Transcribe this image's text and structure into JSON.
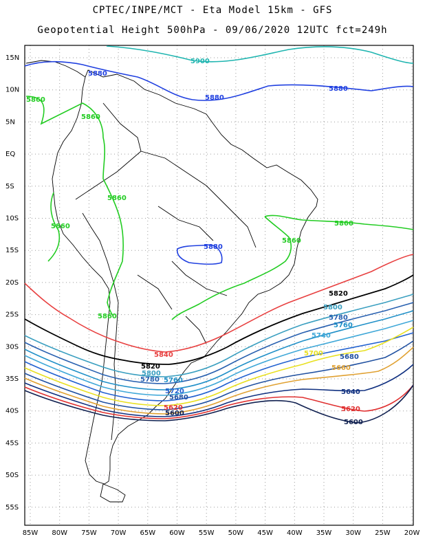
{
  "header": {
    "line1": "CPTEC/INPE/MCT -  Eta Model 15km - GFS",
    "line2": "Geopotential Height 500hPa - 09/06/2020 12UTC fct=249h"
  },
  "axes": {
    "lat_labels": [
      "15N",
      "10N",
      "5N",
      "EQ",
      "5S",
      "10S",
      "15S",
      "20S",
      "25S",
      "30S",
      "35S",
      "40S",
      "45S",
      "50S",
      "55S"
    ],
    "lon_labels": [
      "85W",
      "80W",
      "75W",
      "70W",
      "65W",
      "60W",
      "55W",
      "50W",
      "45W",
      "40W",
      "35W",
      "30W",
      "25W",
      "20W"
    ]
  },
  "contours": [
    {
      "value": "5900",
      "color": "#1fb5b0"
    },
    {
      "value": "5880",
      "color": "#2040e0"
    },
    {
      "value": "5860",
      "color": "#22cc22"
    },
    {
      "value": "5840",
      "color": "#e84040"
    },
    {
      "value": "5820",
      "color": "#000000"
    },
    {
      "value": "5800",
      "color": "#3a9fc0"
    },
    {
      "value": "5780",
      "color": "#2860b0"
    },
    {
      "value": "5760",
      "color": "#2090c8"
    },
    {
      "value": "5740",
      "color": "#40a8d8"
    },
    {
      "value": "5720",
      "color": "#2060d0"
    },
    {
      "value": "5700",
      "color": "#e8e020"
    },
    {
      "value": "5680",
      "color": "#2050a0"
    },
    {
      "value": "5660",
      "color": "#e0a030"
    },
    {
      "value": "5640",
      "color": "#103080"
    },
    {
      "value": "5620",
      "color": "#e03030"
    },
    {
      "value": "5600",
      "color": "#102050"
    }
  ],
  "labels": {
    "l5900": "5900",
    "l5880a": "5880",
    "l5880b": "5880",
    "l5880c": "5880",
    "l5880d": "5880",
    "l5860a": "5860",
    "l5860b": "5860",
    "l5860c": "5860",
    "l5860d": "5860",
    "l5860e": "5860",
    "l5860f": "5860",
    "l5860g": "5860",
    "l5840": "5840",
    "l5820a": "5820",
    "l5820b": "5820",
    "l5800a": "5800",
    "l5800b": "5800",
    "l5780a": "5780",
    "l5780b": "5780",
    "l5760a": "5760",
    "l5760b": "5760",
    "l5740": "5740",
    "l5720": "5720",
    "l5700": "5700",
    "l5680a": "5680",
    "l5680b": "5680",
    "l5660": "5660",
    "l5640": "5640",
    "l5620a": "5620",
    "l5620b": "5620",
    "l5600a": "5600",
    "l5600b": "5600"
  }
}
